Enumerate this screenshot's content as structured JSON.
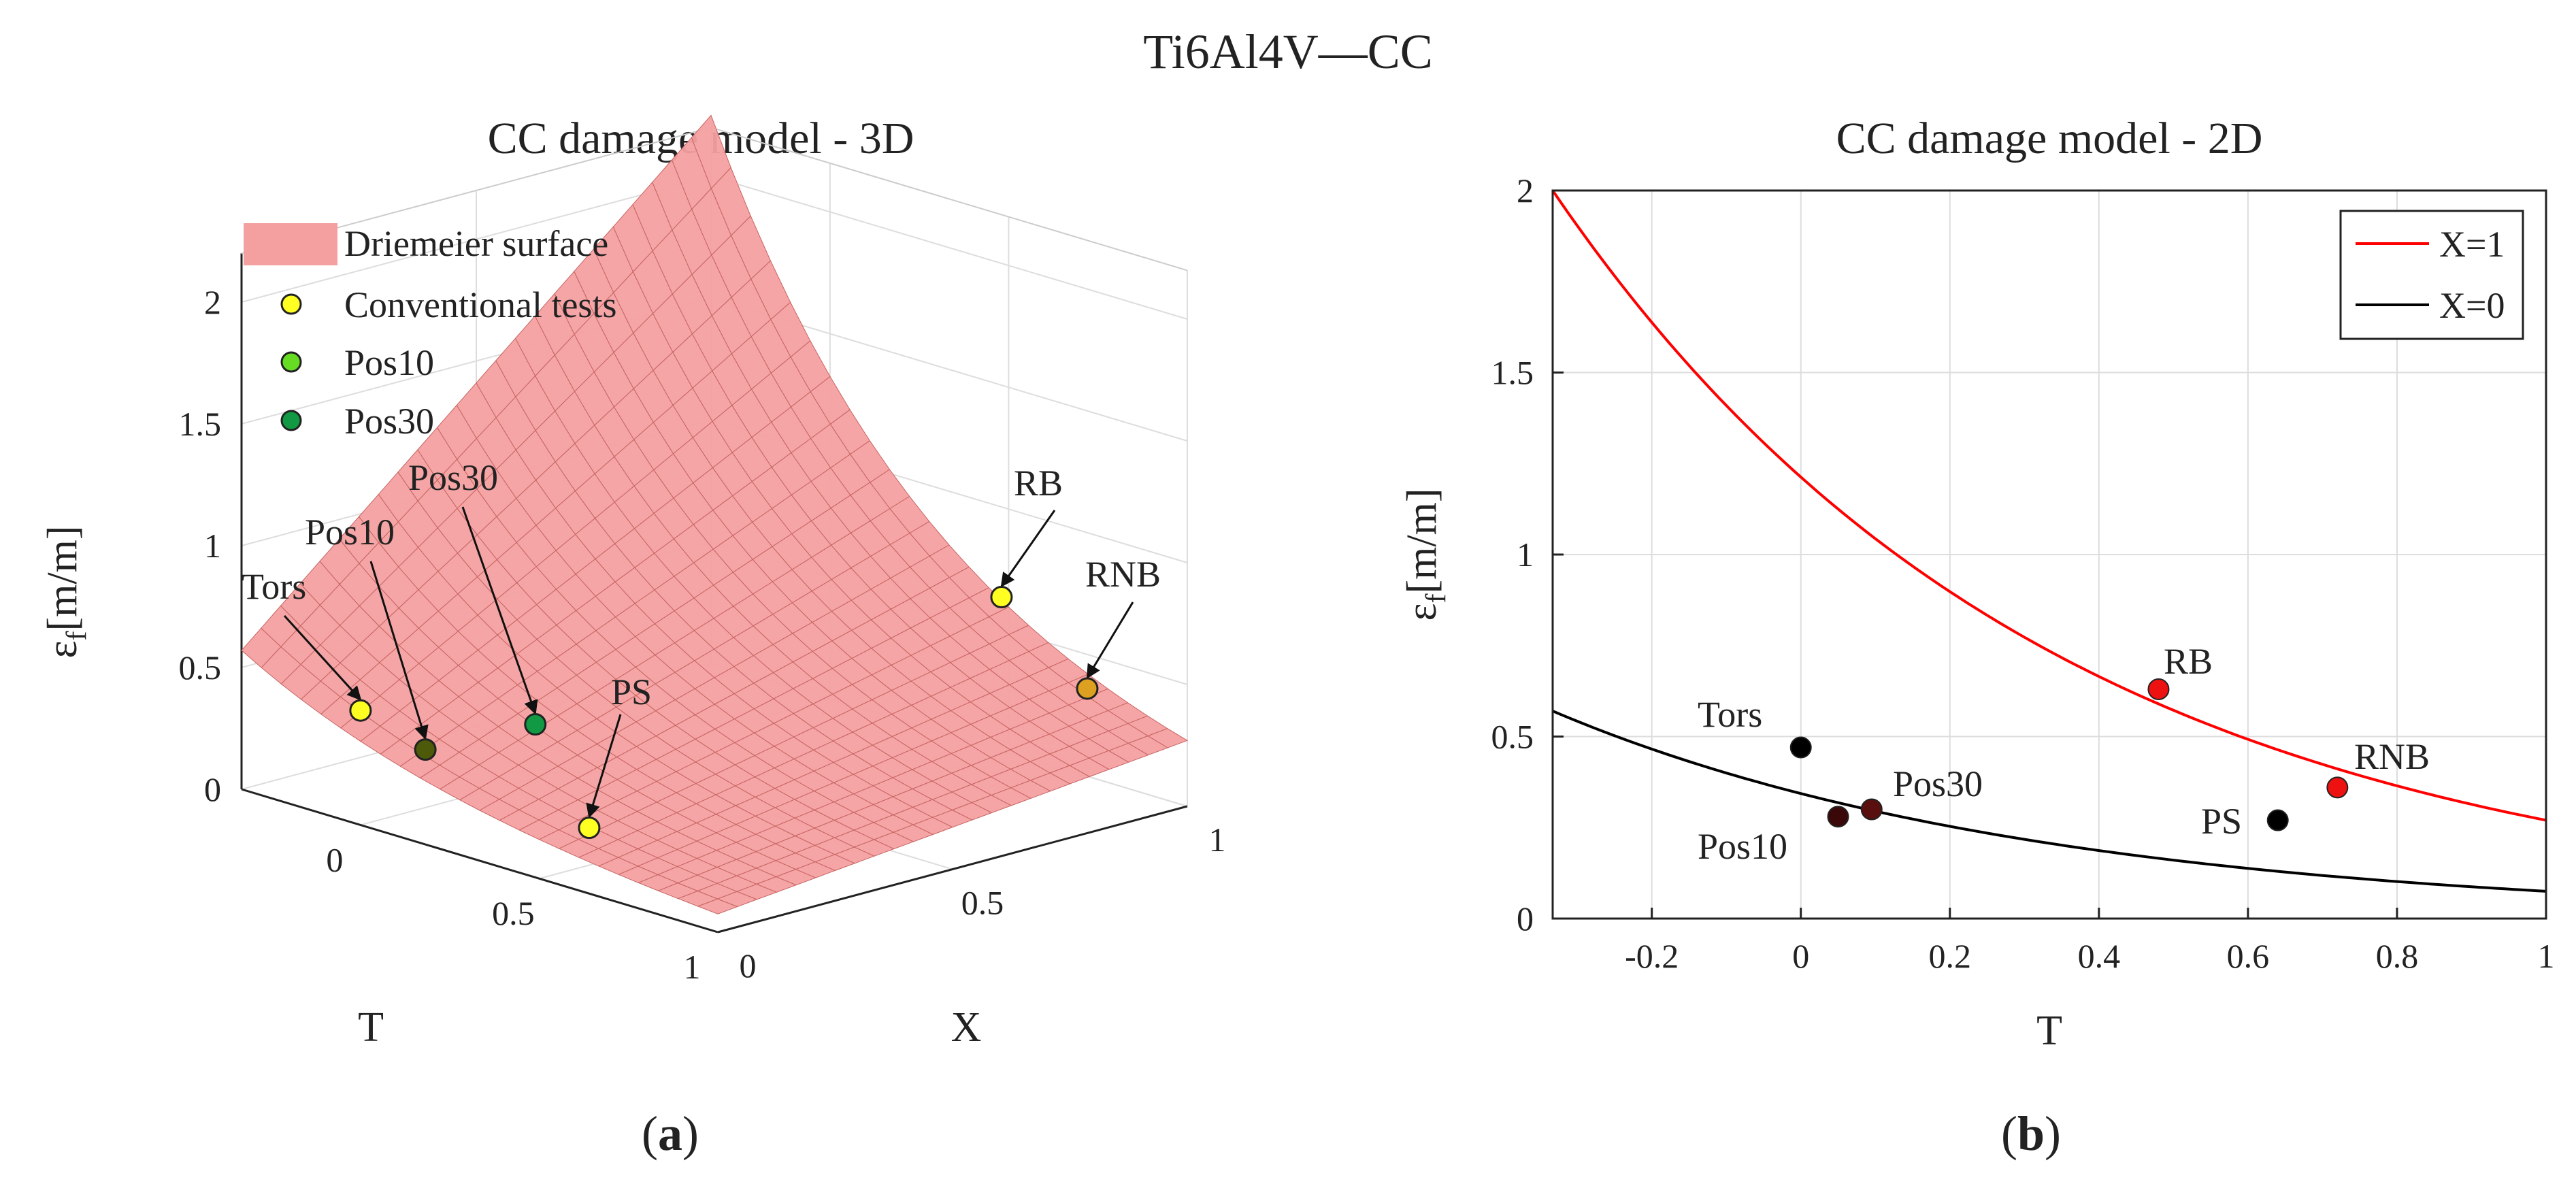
{
  "figure": {
    "title": "Ti6Al4V—CC",
    "caption_a": "(a)",
    "caption_b": "(b)",
    "caption_a_letter": "a",
    "caption_b_letter": "b"
  },
  "colors": {
    "surface": "#f4a0a0",
    "surface_mesh": "#c86464",
    "x1_line": "#ff0000",
    "x0_line": "#000000",
    "conventional": "#ffff22",
    "pos10_3d": "#66dd22",
    "pos30_3d": "#119944",
    "grid": "#dddddd",
    "axis": "#222222"
  },
  "chart_data": [
    {
      "type": "surface",
      "title": "CC damage model - 3D",
      "xlabel": "T",
      "ylabel": "X",
      "zlabel": "εf [m/m]",
      "zlabel_main": "ε",
      "zlabel_sub": "f",
      "zlabel_unit": "[m/m]",
      "zlim": [
        0,
        2.2
      ],
      "t_ticks": [
        "0",
        "0.5",
        "1"
      ],
      "x_ticks": [
        "0",
        "0.5",
        "1"
      ],
      "z_ticks": [
        "0",
        "0.5",
        "1",
        "1.5",
        "2"
      ],
      "legend": {
        "placement": "top-left",
        "entries": [
          "Driemeier surface",
          "Conventional tests",
          "Pos10",
          "Pos30"
        ]
      },
      "points": [
        {
          "label": "Tors",
          "T": 0,
          "X": 0,
          "ef": 0.47,
          "group": "Conventional tests"
        },
        {
          "label": "Pos10",
          "T": 0.05,
          "X": 0.1,
          "ef": 0.28,
          "group": "Pos10"
        },
        {
          "label": "Pos30",
          "T": 0.095,
          "X": 0.3,
          "ef": 0.3,
          "group": "Pos30"
        },
        {
          "label": "PS",
          "T": 0.64,
          "X": 0,
          "ef": 0.27,
          "group": "Conventional tests"
        },
        {
          "label": "RB",
          "T": 0.48,
          "X": 1,
          "ef": 0.63,
          "group": "Conventional tests"
        },
        {
          "label": "RNB",
          "T": 0.72,
          "X": 1,
          "ef": 0.36,
          "group": "Conventional tests"
        }
      ],
      "grid": true
    },
    {
      "type": "line",
      "title": "CC damage model - 2D",
      "xlabel": "T",
      "ylabel": "εf [m/m]",
      "ylabel_main": "ε",
      "ylabel_sub": "f",
      "ylabel_unit": "[m/m]",
      "xlim": [
        -0.333,
        1
      ],
      "ylim": [
        0,
        2
      ],
      "x_ticks": [
        "-0.2",
        "0",
        "0.2",
        "0.4",
        "0.6",
        "0.8",
        "1"
      ],
      "y_ticks": [
        "0",
        "0.5",
        "1",
        "1.5",
        "2"
      ],
      "legend": {
        "placement": "top-right",
        "entries": [
          "X=1",
          "X=0"
        ]
      },
      "series": [
        {
          "name": "X=1",
          "x": [
            -0.333,
            -0.2,
            0,
            0.2,
            0.4,
            0.6,
            0.8,
            1
          ],
          "y": [
            2.0,
            1.66,
            1.23,
            0.91,
            0.67,
            0.5,
            0.37,
            0.27
          ]
        },
        {
          "name": "X=0",
          "x": [
            -0.333,
            -0.2,
            0,
            0.2,
            0.4,
            0.6,
            0.8,
            1
          ],
          "y": [
            0.57,
            0.48,
            0.36,
            0.27,
            0.2,
            0.14,
            0.1,
            0.075
          ]
        }
      ],
      "points": [
        {
          "label": "Tors",
          "T": 0,
          "ef": 0.47,
          "color": "#000000"
        },
        {
          "label": "Pos10",
          "T": 0.05,
          "ef": 0.28,
          "color": "#3a0808"
        },
        {
          "label": "Pos30",
          "T": 0.095,
          "ef": 0.3,
          "color": "#5a0f0f"
        },
        {
          "label": "PS",
          "T": 0.64,
          "ef": 0.27,
          "color": "#000000"
        },
        {
          "label": "RB",
          "T": 0.48,
          "ef": 0.63,
          "color": "#ee1111"
        },
        {
          "label": "RNB",
          "T": 0.72,
          "ef": 0.36,
          "color": "#ee1111"
        }
      ],
      "grid": true
    }
  ]
}
